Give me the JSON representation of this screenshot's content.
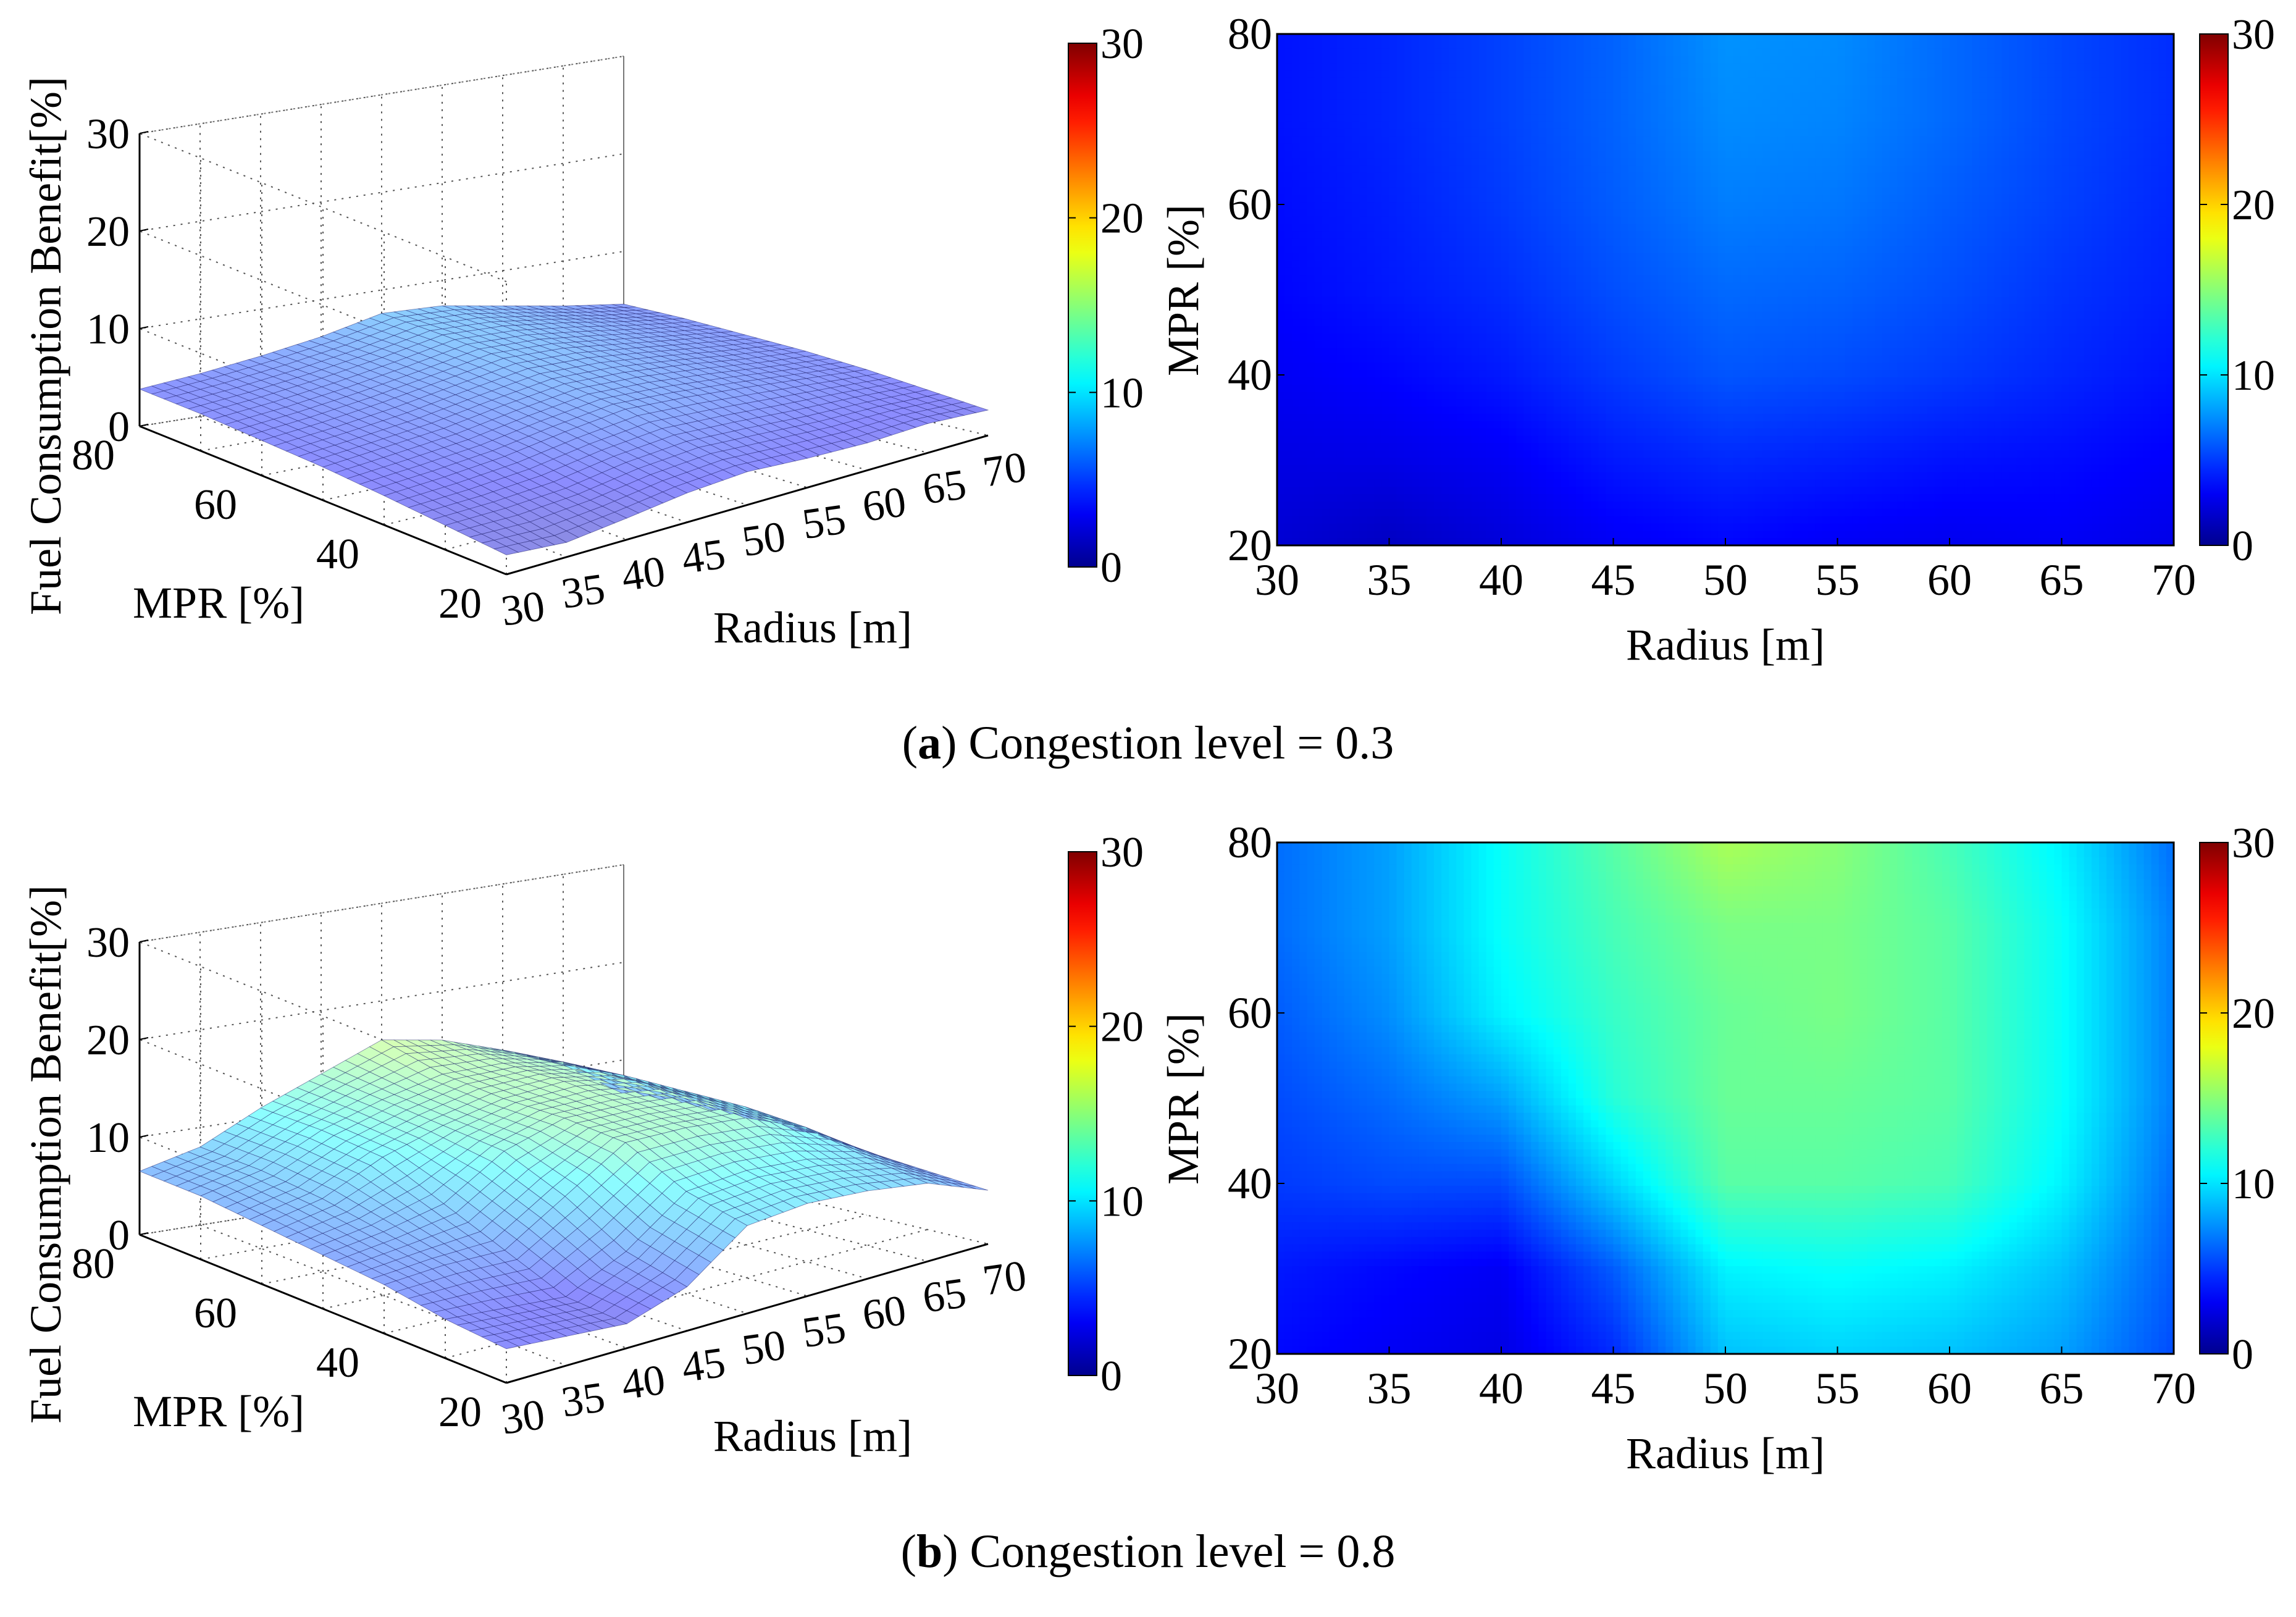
{
  "colors": {
    "jet_stops": [
      "#00008f",
      "#0000ff",
      "#00ffff",
      "#ffff00",
      "#ff0000",
      "#800000"
    ],
    "surface_ink": "#1a1a66"
  },
  "chart_data": [
    {
      "id": "a-surface",
      "type": "surface",
      "zlabel": "Fuel Consumption Benefit[%]",
      "xlabel": "Radius [m]",
      "ylabel": "MPR [%]",
      "x_ticks": [
        "30",
        "35",
        "40",
        "45",
        "50",
        "55",
        "60",
        "65",
        "70"
      ],
      "y_ticks": [
        "80",
        "60",
        "40",
        "20"
      ],
      "z_ticks": [
        "0",
        "10",
        "20",
        "30"
      ],
      "zlim": [
        0,
        30
      ],
      "colorbar": {
        "min": 0,
        "max": 30,
        "ticks": [
          "0",
          "10",
          "20",
          "30"
        ]
      },
      "radius": [
        30,
        35,
        40,
        45,
        50,
        55,
        60,
        65,
        70
      ],
      "mpr": [
        20,
        30,
        40,
        50,
        60,
        70,
        80
      ],
      "z": [
        [
          2.0,
          1.5,
          2.2,
          3.0,
          3.4,
          3.0,
          2.8,
          3.0,
          2.6
        ],
        [
          2.5,
          2.6,
          3.0,
          4.0,
          4.5,
          4.2,
          3.8,
          3.6,
          3.2
        ],
        [
          3.0,
          3.4,
          4.0,
          5.0,
          5.8,
          5.5,
          5.0,
          4.4,
          3.8
        ],
        [
          3.4,
          4.0,
          4.6,
          5.6,
          6.4,
          6.2,
          5.6,
          4.8,
          4.2
        ],
        [
          3.6,
          4.2,
          5.0,
          6.0,
          7.0,
          6.8,
          6.0,
          5.2,
          4.4
        ],
        [
          3.8,
          4.4,
          5.2,
          6.2,
          7.4,
          7.2,
          6.4,
          5.4,
          4.6
        ],
        [
          3.8,
          4.4,
          5.2,
          6.2,
          7.6,
          7.4,
          6.4,
          5.4,
          4.6
        ]
      ]
    },
    {
      "id": "a-heatmap",
      "type": "heatmap",
      "xlabel": "Radius [m]",
      "ylabel": "MPR [%]",
      "x_ticks": [
        "30",
        "35",
        "40",
        "45",
        "50",
        "55",
        "60",
        "65",
        "70"
      ],
      "y_ticks": [
        "80",
        "60",
        "40",
        "20"
      ],
      "colorbar": {
        "min": 0,
        "max": 30,
        "ticks": [
          "0",
          "10",
          "20",
          "30"
        ]
      },
      "radius": [
        30,
        35,
        40,
        45,
        50,
        55,
        60,
        65,
        70
      ],
      "mpr": [
        20,
        30,
        40,
        50,
        60,
        70,
        80
      ],
      "z": [
        [
          2.0,
          1.5,
          2.2,
          3.0,
          3.4,
          3.0,
          2.8,
          3.0,
          2.6
        ],
        [
          2.5,
          2.6,
          3.0,
          4.0,
          4.5,
          4.2,
          3.8,
          3.6,
          3.2
        ],
        [
          3.0,
          3.4,
          4.0,
          5.0,
          5.8,
          5.5,
          5.0,
          4.4,
          3.8
        ],
        [
          3.4,
          4.0,
          4.6,
          5.6,
          6.4,
          6.2,
          5.6,
          4.8,
          4.2
        ],
        [
          3.6,
          4.2,
          5.0,
          6.0,
          7.0,
          6.8,
          6.0,
          5.2,
          4.4
        ],
        [
          3.8,
          4.4,
          5.2,
          6.2,
          7.4,
          7.2,
          6.4,
          5.4,
          4.6
        ],
        [
          3.8,
          4.4,
          5.2,
          6.2,
          7.6,
          7.4,
          6.4,
          5.4,
          4.6
        ]
      ]
    },
    {
      "id": "b-surface",
      "type": "surface",
      "zlabel": "Fuel Consumption Benefit[%]",
      "xlabel": "Radius [m]",
      "ylabel": "MPR [%]",
      "x_ticks": [
        "30",
        "35",
        "40",
        "45",
        "50",
        "55",
        "60",
        "65",
        "70"
      ],
      "y_ticks": [
        "80",
        "60",
        "40",
        "20"
      ],
      "z_ticks": [
        "0",
        "10",
        "20",
        "30"
      ],
      "zlim": [
        0,
        30
      ],
      "colorbar": {
        "min": 0,
        "max": 30,
        "ticks": [
          "0",
          "10",
          "20",
          "30"
        ]
      },
      "radius": [
        30,
        35,
        40,
        45,
        50,
        55,
        60,
        65,
        70
      ],
      "mpr": [
        20,
        30,
        40,
        50,
        60,
        70,
        80
      ],
      "z": [
        [
          3.5,
          3.0,
          2.5,
          4.5,
          9.0,
          9.5,
          9.0,
          8.0,
          5.5
        ],
        [
          4.0,
          3.5,
          3.0,
          6.0,
          10.5,
          11.0,
          10.5,
          9.0,
          6.0
        ],
        [
          5.0,
          5.5,
          5.5,
          9.5,
          13.5,
          13.5,
          13.0,
          10.5,
          6.5
        ],
        [
          5.5,
          6.5,
          8.0,
          12.0,
          14.0,
          14.0,
          13.5,
          11.0,
          7.0
        ],
        [
          6.0,
          7.5,
          10.5,
          12.5,
          14.0,
          14.5,
          13.5,
          11.0,
          7.0
        ],
        [
          6.5,
          8.0,
          11.0,
          13.0,
          14.5,
          14.5,
          13.5,
          11.0,
          7.0
        ],
        [
          6.5,
          8.0,
          11.0,
          13.5,
          16.0,
          15.0,
          13.0,
          10.5,
          6.5
        ]
      ]
    },
    {
      "id": "b-heatmap",
      "type": "heatmap",
      "xlabel": "Radius [m]",
      "ylabel": "MPR [%]",
      "x_ticks": [
        "30",
        "35",
        "40",
        "45",
        "50",
        "55",
        "60",
        "65",
        "70"
      ],
      "y_ticks": [
        "80",
        "60",
        "40",
        "20"
      ],
      "colorbar": {
        "min": 0,
        "max": 30,
        "ticks": [
          "0",
          "10",
          "20",
          "30"
        ]
      },
      "radius": [
        30,
        35,
        40,
        45,
        50,
        55,
        60,
        65,
        70
      ],
      "mpr": [
        20,
        30,
        40,
        50,
        60,
        70,
        80
      ],
      "z": [
        [
          3.5,
          3.0,
          2.5,
          4.5,
          9.0,
          9.5,
          9.0,
          8.0,
          5.5
        ],
        [
          4.0,
          3.5,
          3.0,
          6.0,
          10.5,
          11.0,
          10.5,
          9.0,
          6.0
        ],
        [
          5.0,
          5.5,
          5.5,
          9.5,
          13.5,
          13.5,
          13.0,
          10.5,
          6.5
        ],
        [
          5.5,
          6.5,
          8.0,
          12.0,
          14.0,
          14.0,
          13.5,
          11.0,
          7.0
        ],
        [
          6.0,
          7.5,
          10.5,
          12.5,
          14.0,
          14.5,
          13.5,
          11.0,
          7.0
        ],
        [
          6.5,
          8.0,
          11.0,
          13.0,
          14.5,
          14.5,
          13.5,
          11.0,
          7.0
        ],
        [
          6.5,
          8.0,
          11.0,
          13.5,
          16.0,
          15.0,
          13.0,
          10.5,
          6.5
        ]
      ]
    }
  ],
  "captions": {
    "a": {
      "letter": "a",
      "text": " Congestion level = 0.3"
    },
    "b": {
      "letter": "b",
      "text": " Congestion level = 0.8"
    }
  }
}
